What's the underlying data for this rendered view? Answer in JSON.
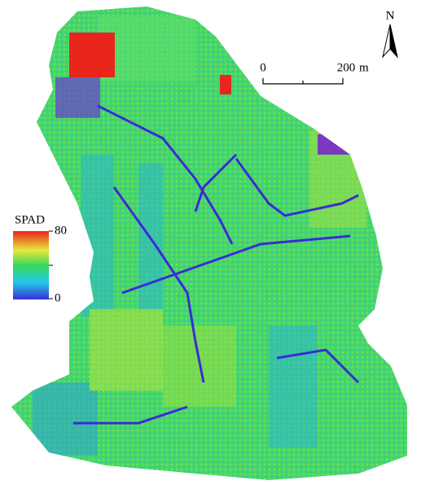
{
  "legend": {
    "title": "SPAD",
    "max": 80,
    "min": 0
  },
  "scale_bar": {
    "start": 0,
    "end": 200,
    "unit": "m"
  },
  "north_arrow": {
    "label": "N"
  }
}
